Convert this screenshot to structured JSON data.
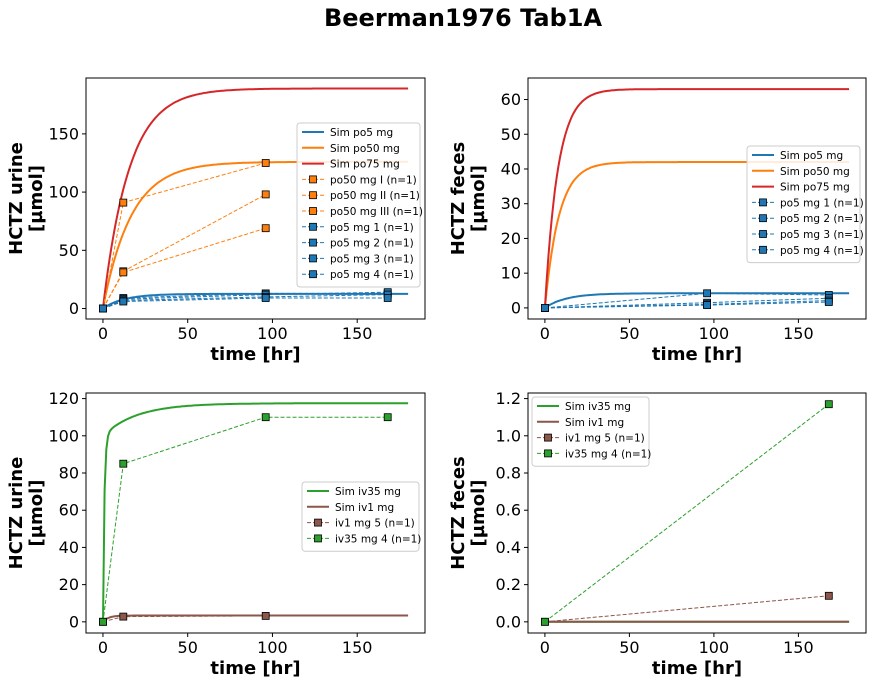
{
  "figure_title": "Beerman1976 Tab1A",
  "chart_data": [
    {
      "type": "line",
      "xlabel": "time [hr]",
      "ylabel_lines": [
        "HCTZ urine",
        "[µmol]"
      ],
      "xlim": [
        -10,
        190
      ],
      "ylim": [
        -9,
        198
      ],
      "xticks": [
        0,
        50,
        100,
        150
      ],
      "yticks": [
        0,
        50,
        100,
        150
      ],
      "legend_position": "right",
      "sim": [
        {
          "name": "Sim po5 mg",
          "color": "#1f77b4",
          "ymax": 12.6,
          "k": 0.08
        },
        {
          "name": "Sim po50 mg",
          "color": "#ff7f0e",
          "ymax": 126,
          "k": 0.06
        },
        {
          "name": "Sim po75 mg",
          "color": "#d62728",
          "ymax": 189,
          "k": 0.065
        }
      ],
      "data": [
        {
          "name": "po50 mg I (n=1)",
          "color": "#ff7f0e",
          "x": [
            0,
            12,
            96
          ],
          "y": [
            0,
            91,
            125
          ]
        },
        {
          "name": "po50 mg II (n=1)",
          "color": "#ff7f0e",
          "x": [
            0,
            12,
            96
          ],
          "y": [
            0,
            32,
            98
          ]
        },
        {
          "name": "po50 mg III (n=1)",
          "color": "#ff7f0e",
          "x": [
            0,
            12,
            96
          ],
          "y": [
            0,
            31,
            69
          ]
        },
        {
          "name": "po5 mg 1 (n=1)",
          "color": "#1f77b4",
          "x": [
            0,
            12,
            96,
            168
          ],
          "y": [
            0,
            9,
            13,
            13
          ]
        },
        {
          "name": "po5 mg 2 (n=1)",
          "color": "#1f77b4",
          "x": [
            0,
            12,
            96,
            168
          ],
          "y": [
            0,
            8,
            12,
            14
          ]
        },
        {
          "name": "po5 mg 3 (n=1)",
          "color": "#1f77b4",
          "x": [
            0,
            12,
            96,
            168
          ],
          "y": [
            0,
            7,
            10,
            12
          ]
        },
        {
          "name": "po5 mg 4 (n=1)",
          "color": "#1f77b4",
          "x": [
            0,
            12,
            96,
            168
          ],
          "y": [
            0,
            6,
            9,
            9
          ]
        }
      ]
    },
    {
      "type": "line",
      "xlabel": "time [hr]",
      "ylabel_lines": [
        "HCTZ feces",
        "[µmol]"
      ],
      "xlim": [
        -10,
        190
      ],
      "ylim": [
        -3.2,
        66.2
      ],
      "xticks": [
        0,
        50,
        100,
        150
      ],
      "yticks": [
        0,
        10,
        20,
        30,
        40,
        50,
        60
      ],
      "legend_position": "right",
      "sim": [
        {
          "name": "Sim po5 mg",
          "color": "#1f77b4",
          "ymax": 4.2,
          "k": 0.08
        },
        {
          "name": "Sim po50 mg",
          "color": "#ff7f0e",
          "ymax": 42,
          "k": 0.12
        },
        {
          "name": "Sim po75 mg",
          "color": "#d62728",
          "ymax": 63,
          "k": 0.13
        }
      ],
      "data": [
        {
          "name": "po5 mg 1 (n=1)",
          "color": "#1f77b4",
          "x": [
            0,
            96,
            168
          ],
          "y": [
            0,
            4.2,
            3.7
          ]
        },
        {
          "name": "po5 mg 2 (n=1)",
          "color": "#1f77b4",
          "x": [
            0,
            96,
            168
          ],
          "y": [
            0,
            1.5,
            2.8
          ]
        },
        {
          "name": "po5 mg 3 (n=1)",
          "color": "#1f77b4",
          "x": [
            0,
            96,
            168
          ],
          "y": [
            0,
            1.0,
            2.1
          ]
        },
        {
          "name": "po5 mg 4 (n=1)",
          "color": "#1f77b4",
          "x": [
            0,
            96,
            168
          ],
          "y": [
            0,
            0.8,
            1.7
          ]
        }
      ]
    },
    {
      "type": "line",
      "xlabel": "time [hr]",
      "ylabel_lines": [
        "HCTZ urine",
        "[µmol]"
      ],
      "xlim": [
        -10,
        190
      ],
      "ylim": [
        -6,
        123
      ],
      "xticks": [
        0,
        50,
        100,
        150
      ],
      "yticks": [
        0,
        20,
        40,
        60,
        80,
        100,
        120
      ],
      "legend_position": "right",
      "sim": [
        {
          "name": "Sim iv35 mg",
          "color": "#2ca02c",
          "ymax": 117.5,
          "k": 0.05,
          "iv": true
        },
        {
          "name": "Sim iv1 mg",
          "color": "#8c564b",
          "ymax": 3.4,
          "k": 0.3
        }
      ],
      "data": [
        {
          "name": "iv1 mg 5 (n=1)",
          "color": "#8c564b",
          "x": [
            0,
            12,
            96
          ],
          "y": [
            0,
            2.8,
            3.2
          ]
        },
        {
          "name": "iv35 mg 4 (n=1)",
          "color": "#2ca02c",
          "x": [
            0,
            12,
            96,
            168
          ],
          "y": [
            0,
            85,
            110,
            110
          ]
        }
      ]
    },
    {
      "type": "line",
      "xlabel": "time [hr]",
      "ylabel_lines": [
        "HCTZ feces",
        "[µmol]"
      ],
      "xlim": [
        -10,
        190
      ],
      "ylim": [
        -0.06,
        1.23
      ],
      "xticks": [
        0,
        50,
        100,
        150
      ],
      "yticks": [
        "0.0",
        "0.2",
        "0.4",
        "0.6",
        "0.8",
        "1.0",
        "1.2"
      ],
      "legend_position": "upper left",
      "sim": [
        {
          "name": "Sim iv35 mg",
          "color": "#2ca02c",
          "ymax": 0,
          "k": 0.1
        },
        {
          "name": "Sim iv1 mg",
          "color": "#8c564b",
          "ymax": 0,
          "k": 0.1
        }
      ],
      "data": [
        {
          "name": "iv1 mg 5 (n=1)",
          "color": "#8c564b",
          "x": [
            0,
            168
          ],
          "y": [
            0,
            0.14
          ]
        },
        {
          "name": "iv35 mg 4 (n=1)",
          "color": "#2ca02c",
          "x": [
            0,
            168
          ],
          "y": [
            0,
            1.17
          ]
        }
      ]
    }
  ]
}
